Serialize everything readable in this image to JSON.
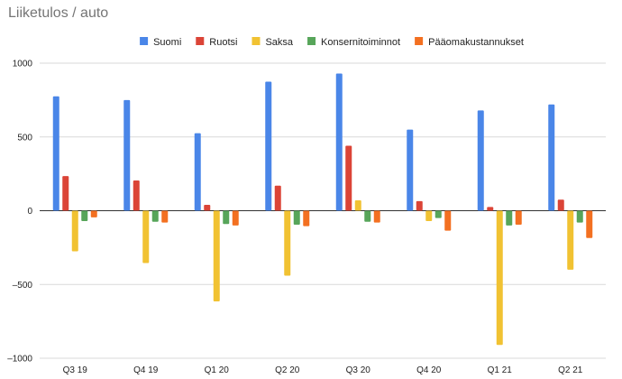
{
  "chart_data": {
    "type": "bar",
    "title": "Liiketulos / auto",
    "xlabel": "",
    "ylabel": "",
    "categories": [
      "Q3 19",
      "Q4 19",
      "Q1 20",
      "Q2 20",
      "Q3 20",
      "Q4 20",
      "Q1 21",
      "Q2 21"
    ],
    "series": [
      {
        "name": "Suomi",
        "color": "#4a86e8",
        "values": [
          775,
          750,
          525,
          875,
          930,
          550,
          680,
          720
        ]
      },
      {
        "name": "Ruotsi",
        "color": "#db4437",
        "values": [
          235,
          205,
          40,
          170,
          440,
          65,
          25,
          75
        ]
      },
      {
        "name": "Saksa",
        "color": "#f1c232",
        "values": [
          -275,
          -355,
          -615,
          -440,
          70,
          -70,
          -910,
          -400
        ]
      },
      {
        "name": "Konsernitoiminnot",
        "color": "#57a55a",
        "values": [
          -70,
          -75,
          -90,
          -95,
          -75,
          -50,
          -100,
          -80
        ]
      },
      {
        "name": "Pääomakustannukset",
        "color": "#f37021",
        "values": [
          -45,
          -80,
          -100,
          -105,
          -80,
          -135,
          -95,
          -185
        ]
      }
    ],
    "ylim": [
      -1000,
      1000
    ],
    "yticks": [
      1000,
      500,
      0,
      -500,
      -1000
    ],
    "ytick_labels": [
      "1000",
      "500",
      "0",
      "–500",
      "–1000"
    ],
    "grid": true,
    "legend_position": "top-center"
  }
}
